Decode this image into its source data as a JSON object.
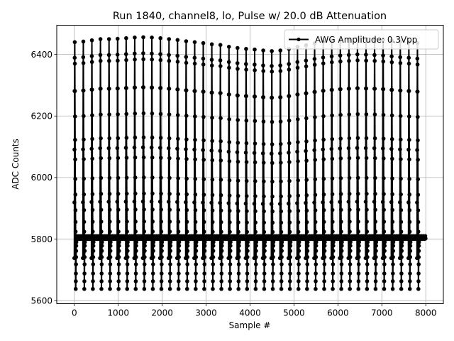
{
  "chart_data": {
    "type": "line",
    "title": "Run 1840, channel8, lo, Pulse w/ 20.0 dB Attenuation",
    "xlabel": "Sample #",
    "ylabel": "ADC Counts",
    "xlim": [
      -400,
      8400
    ],
    "ylim": [
      5590,
      6495
    ],
    "xticks": [
      0,
      1000,
      2000,
      3000,
      4000,
      5000,
      6000,
      7000,
      8000
    ],
    "yticks": [
      5600,
      5800,
      6000,
      6200,
      6400
    ],
    "grid": true,
    "legend_position": "top-right",
    "series": [
      {
        "name": "AWG Amplitude: 0.3Vpp",
        "color": "#000000",
        "marker": "circle",
        "baseline": 5805,
        "pulse_period": 195,
        "pulse_start": 0,
        "pulse_peaks": [
          6440,
          6442,
          6446,
          6450,
          6450,
          6451,
          6453,
          6455,
          6456,
          6455,
          6453,
          6450,
          6447,
          6443,
          6440,
          6437,
          6433,
          6431,
          6425,
          6421,
          6418,
          6416,
          6413,
          6411,
          6413,
          6418,
          6425,
          6430,
          6436,
          6441,
          6445,
          6448,
          6450,
          6452,
          6451,
          6450,
          6448,
          6445,
          6442,
          6440,
          6437
        ],
        "pulse_undershoot": 5638,
        "x_end": 8000
      }
    ]
  }
}
